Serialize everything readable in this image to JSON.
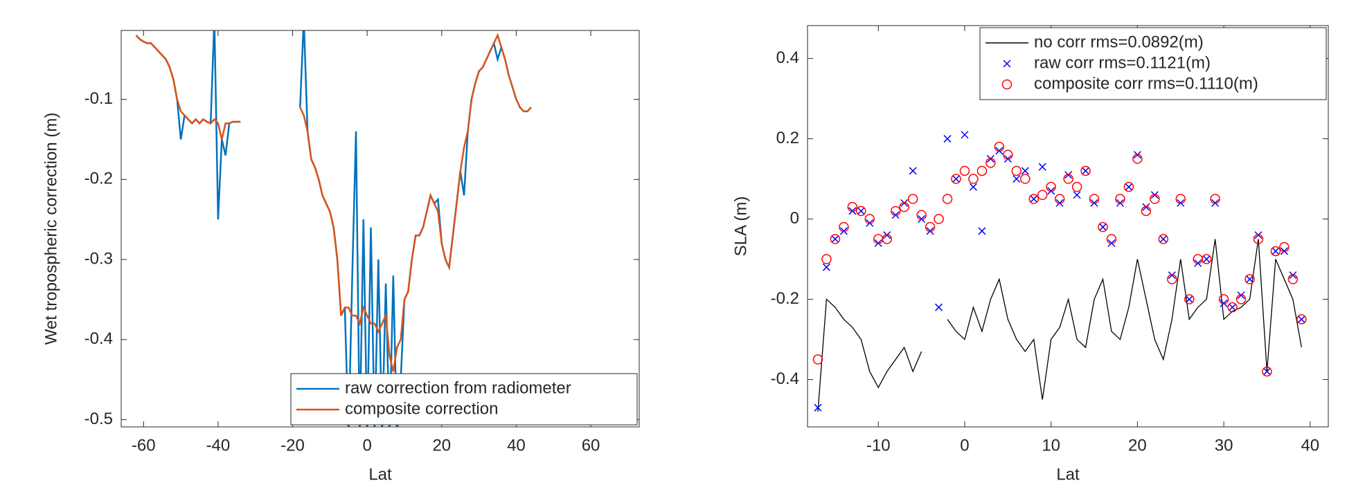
{
  "chart_data": [
    {
      "type": "line",
      "xlabel": "Lat",
      "ylabel": "Wet tropospheric correction (m)",
      "xlim": [
        -66,
        73
      ],
      "ylim": [
        -0.509,
        -0.014
      ],
      "xticks": [
        -60,
        -40,
        -20,
        0,
        20,
        40,
        60
      ],
      "yticks": [
        -0.5,
        -0.4,
        -0.3,
        -0.2,
        -0.1
      ],
      "legend": "lower right",
      "x": [
        -62,
        -61,
        -60,
        -59,
        -58,
        -57,
        -56,
        -55,
        -54,
        -53,
        -52,
        -51,
        -50,
        -49,
        -48,
        -47,
        -46,
        -45,
        -44,
        -43,
        -42,
        -41,
        -40,
        -39,
        -38,
        -37,
        -36,
        -35,
        -34,
        -33,
        -32,
        -31,
        -30,
        -29,
        -28,
        -27,
        -26,
        -25,
        -24,
        -23,
        -22,
        -21,
        -20,
        -19,
        -18,
        -17,
        -16,
        -15,
        -14,
        -13,
        -12,
        -11,
        -10,
        -9,
        -8,
        -7,
        -6,
        -5,
        -4,
        -3,
        -2,
        -1,
        0,
        1,
        2,
        3,
        4,
        5,
        6,
        7,
        8,
        9,
        10,
        11,
        12,
        13,
        14,
        15,
        16,
        17,
        18,
        19,
        20,
        21,
        22,
        23,
        24,
        25,
        26,
        27,
        28,
        29,
        30,
        31,
        32,
        33,
        34,
        35,
        36,
        37,
        38,
        39,
        40,
        41,
        42,
        43,
        44
      ],
      "series": [
        {
          "name": "raw correction from radiometer",
          "color": "#0072bd",
          "marker": "none",
          "values": [
            -0.02,
            -0.025,
            -0.028,
            -0.03,
            -0.03,
            -0.035,
            -0.04,
            -0.045,
            -0.05,
            -0.06,
            -0.075,
            -0.1,
            -0.15,
            -0.12,
            -0.125,
            -0.13,
            -0.125,
            -0.13,
            -0.125,
            -0.128,
            -0.13,
            0.0,
            -0.25,
            -0.15,
            -0.17,
            -0.13,
            -0.128,
            -0.128,
            -0.128,
            null,
            null,
            null,
            null,
            null,
            null,
            null,
            null,
            null,
            null,
            null,
            null,
            null,
            null,
            null,
            -0.11,
            0.0,
            -0.14,
            -0.175,
            -0.185,
            -0.2,
            -0.22,
            -0.23,
            -0.24,
            -0.26,
            -0.3,
            -0.37,
            -0.36,
            -0.52,
            -0.32,
            -0.14,
            -0.52,
            -0.25,
            -0.52,
            -0.26,
            -0.52,
            -0.3,
            -0.52,
            -0.33,
            -0.52,
            -0.32,
            -0.52,
            -0.45,
            -0.35,
            -0.34,
            -0.3,
            -0.27,
            -0.27,
            -0.26,
            -0.24,
            -0.22,
            -0.23,
            -0.225,
            -0.28,
            -0.3,
            -0.31,
            -0.27,
            -0.23,
            -0.19,
            -0.22,
            -0.14,
            -0.1,
            -0.08,
            -0.065,
            -0.06,
            -0.05,
            -0.04,
            -0.03,
            -0.05,
            -0.035,
            -0.05,
            -0.07,
            -0.085,
            -0.1,
            -0.11,
            -0.115,
            -0.115,
            -0.11
          ]
        },
        {
          "name": "composite correction",
          "color": "#d95319",
          "marker": "none",
          "values": [
            -0.02,
            -0.025,
            -0.028,
            -0.03,
            -0.03,
            -0.035,
            -0.04,
            -0.045,
            -0.05,
            -0.06,
            -0.075,
            -0.1,
            -0.115,
            -0.12,
            -0.125,
            -0.13,
            -0.125,
            -0.13,
            -0.125,
            -0.128,
            -0.13,
            -0.125,
            -0.13,
            -0.15,
            -0.13,
            -0.13,
            -0.128,
            -0.128,
            -0.128,
            null,
            null,
            null,
            null,
            null,
            null,
            null,
            null,
            null,
            null,
            null,
            null,
            null,
            null,
            null,
            -0.11,
            -0.12,
            -0.14,
            -0.175,
            -0.185,
            -0.2,
            -0.22,
            -0.23,
            -0.24,
            -0.26,
            -0.3,
            -0.37,
            -0.36,
            -0.36,
            -0.37,
            -0.37,
            -0.38,
            -0.36,
            -0.37,
            -0.38,
            -0.38,
            -0.39,
            -0.38,
            -0.37,
            -0.42,
            -0.44,
            -0.41,
            -0.4,
            -0.35,
            -0.34,
            -0.3,
            -0.27,
            -0.27,
            -0.26,
            -0.24,
            -0.22,
            -0.23,
            -0.24,
            -0.28,
            -0.3,
            -0.31,
            -0.27,
            -0.23,
            -0.19,
            -0.16,
            -0.14,
            -0.1,
            -0.08,
            -0.065,
            -0.06,
            -0.05,
            -0.04,
            -0.03,
            -0.02,
            -0.035,
            -0.05,
            -0.07,
            -0.085,
            -0.1,
            -0.11,
            -0.115,
            -0.115,
            -0.11
          ]
        }
      ]
    },
    {
      "type": "line",
      "xlabel": "Lat",
      "ylabel": "SLA (m)",
      "xlim": [
        -18.2,
        42.1
      ],
      "ylim": [
        -0.518,
        0.482
      ],
      "xticks": [
        -10,
        0,
        10,
        20,
        30,
        40
      ],
      "yticks": [
        -0.4,
        -0.2,
        0,
        0.2,
        0.4
      ],
      "legend": "upper right",
      "x": [
        -17,
        -16,
        -15,
        -14,
        -13,
        -12,
        -11,
        -10,
        -9,
        -8,
        -7,
        -6,
        -5,
        -4,
        -3,
        -2,
        -1,
        0,
        1,
        2,
        3,
        4,
        5,
        6,
        7,
        8,
        9,
        10,
        11,
        12,
        13,
        14,
        15,
        16,
        17,
        18,
        19,
        20,
        21,
        22,
        23,
        24,
        25,
        26,
        27,
        28,
        29,
        30,
        31,
        32,
        33,
        34,
        35,
        36,
        37,
        38,
        39
      ],
      "series": [
        {
          "name": "no corr rms=0.0892(m)",
          "color": "#000000",
          "marker": "none",
          "values": [
            -0.48,
            -0.2,
            -0.22,
            -0.25,
            -0.27,
            -0.3,
            -0.38,
            -0.42,
            -0.38,
            -0.35,
            -0.32,
            -0.38,
            -0.33,
            null,
            null,
            -0.25,
            -0.28,
            -0.3,
            -0.22,
            -0.28,
            -0.2,
            -0.15,
            -0.25,
            -0.3,
            -0.33,
            -0.3,
            -0.45,
            -0.3,
            -0.27,
            -0.2,
            -0.3,
            -0.32,
            -0.2,
            -0.15,
            -0.28,
            -0.3,
            -0.22,
            -0.1,
            -0.2,
            -0.3,
            -0.35,
            -0.25,
            -0.1,
            -0.25,
            -0.22,
            -0.2,
            -0.05,
            -0.25,
            -0.23,
            -0.22,
            -0.2,
            -0.05,
            -0.38,
            -0.1,
            -0.15,
            -0.2,
            -0.32
          ]
        },
        {
          "name": "raw corr rms=0.1121(m)",
          "color": "#0000ff",
          "marker": "x",
          "values": [
            -0.47,
            -0.12,
            -0.05,
            -0.03,
            0.02,
            0.02,
            -0.01,
            -0.06,
            -0.04,
            0.01,
            0.04,
            0.12,
            0.0,
            -0.03,
            -0.22,
            0.2,
            0.1,
            0.21,
            0.08,
            -0.03,
            0.15,
            0.17,
            0.15,
            0.1,
            0.12,
            0.05,
            0.13,
            0.07,
            0.04,
            0.11,
            0.06,
            0.12,
            0.04,
            -0.02,
            -0.06,
            0.04,
            0.08,
            0.16,
            0.03,
            0.06,
            -0.05,
            -0.14,
            0.04,
            -0.2,
            -0.11,
            -0.1,
            0.04,
            -0.21,
            -0.22,
            -0.19,
            -0.15,
            -0.04,
            -0.38,
            -0.08,
            -0.08,
            -0.14,
            -0.25
          ]
        },
        {
          "name": "composite corr rms=0.1110(m)",
          "color": "#ff0000",
          "marker": "o",
          "values": [
            -0.35,
            -0.1,
            -0.05,
            -0.02,
            0.03,
            0.02,
            0.0,
            -0.05,
            -0.05,
            0.02,
            0.03,
            0.05,
            0.01,
            -0.02,
            0.0,
            0.05,
            0.1,
            0.12,
            0.1,
            0.12,
            0.14,
            0.18,
            0.16,
            0.12,
            0.1,
            0.05,
            0.06,
            0.08,
            0.05,
            0.1,
            0.08,
            0.12,
            0.05,
            -0.02,
            -0.05,
            0.05,
            0.08,
            0.15,
            0.02,
            0.05,
            -0.05,
            -0.15,
            0.05,
            -0.2,
            -0.1,
            -0.1,
            0.05,
            -0.2,
            -0.22,
            -0.2,
            -0.15,
            -0.05,
            -0.38,
            -0.08,
            -0.07,
            -0.15,
            -0.25
          ]
        }
      ]
    }
  ]
}
